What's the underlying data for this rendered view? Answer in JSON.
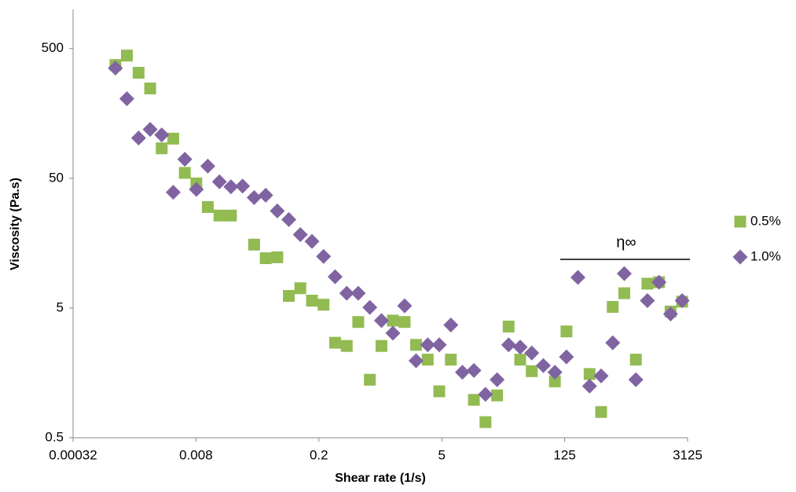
{
  "chart_data": {
    "type": "scatter",
    "xlabel": "Shear rate (1/s)",
    "ylabel": "Viscosity (Pa.s)",
    "annotation": "η∞",
    "xlog": true,
    "ylog": true,
    "xlim": [
      0.00032,
      3125
    ],
    "ylim": [
      0.5,
      1000
    ],
    "xticks": [
      0.00032,
      0.008,
      0.2,
      5,
      125,
      3125
    ],
    "yticks": [
      0.5,
      5,
      50,
      500
    ],
    "legend": "right",
    "series": [
      {
        "name": "0.5%",
        "color": "#92bb52",
        "marker": "square",
        "x": [
          0.00097,
          0.00131,
          0.00178,
          0.00241,
          0.00326,
          0.00441,
          0.00597,
          0.00808,
          0.0109,
          0.0148,
          0.02,
          0.0367,
          0.0497,
          0.0673,
          0.0911,
          0.123,
          0.167,
          0.226,
          0.306,
          0.415,
          0.561,
          0.76,
          1.03,
          1.39,
          1.89,
          2.55,
          3.46,
          4.68,
          6.34,
          11.6,
          15.7,
          21.3,
          28.8,
          39,
          52.8,
          96.8,
          131,
          240,
          325,
          440,
          596,
          807,
          1092,
          1479,
          2002,
          2711
        ],
        "values": [
          373,
          441,
          325,
          246,
          85,
          101,
          55,
          45.6,
          30,
          25.8,
          25.8,
          15.4,
          12.1,
          12.3,
          6.2,
          7.1,
          5.7,
          5.3,
          2.7,
          2.55,
          3.9,
          1.4,
          2.55,
          4.0,
          3.9,
          2.6,
          2.0,
          1.14,
          2.0,
          0.98,
          0.66,
          1.06,
          3.6,
          2.0,
          1.63,
          1.36,
          3.3,
          1.55,
          0.79,
          5.1,
          6.5,
          2.0,
          7.7,
          7.9,
          4.7,
          5.6
        ]
      },
      {
        "name": "1.0%",
        "color": "#8064a2",
        "marker": "diamond",
        "x": [
          0.00097,
          0.00131,
          0.00178,
          0.00241,
          0.00326,
          0.00441,
          0.00597,
          0.00808,
          0.0109,
          0.0148,
          0.02,
          0.0271,
          0.0367,
          0.0497,
          0.0673,
          0.0911,
          0.123,
          0.167,
          0.226,
          0.306,
          0.415,
          0.561,
          0.76,
          1.03,
          1.39,
          1.89,
          2.55,
          3.46,
          4.68,
          6.34,
          8.58,
          11.6,
          15.7,
          21.3,
          28.8,
          39,
          52.8,
          71.5,
          96.8,
          131,
          177,
          240,
          325,
          440,
          596,
          807,
          1092,
          1479,
          2002,
          2711
        ],
        "values": [
          353,
          205,
          102,
          119,
          108,
          39,
          70,
          41,
          62,
          47,
          43,
          43.5,
          35.5,
          37,
          28,
          24,
          18.4,
          16.3,
          12.5,
          8.7,
          6.5,
          6.5,
          5.05,
          4.0,
          3.2,
          5.2,
          1.96,
          2.6,
          2.6,
          3.7,
          1.6,
          1.65,
          1.08,
          1.4,
          2.6,
          2.5,
          2.25,
          1.8,
          1.6,
          2.1,
          8.6,
          1.25,
          1.5,
          2.7,
          9.2,
          1.4,
          5.7,
          7.9,
          4.5,
          5.7
        ]
      }
    ]
  }
}
